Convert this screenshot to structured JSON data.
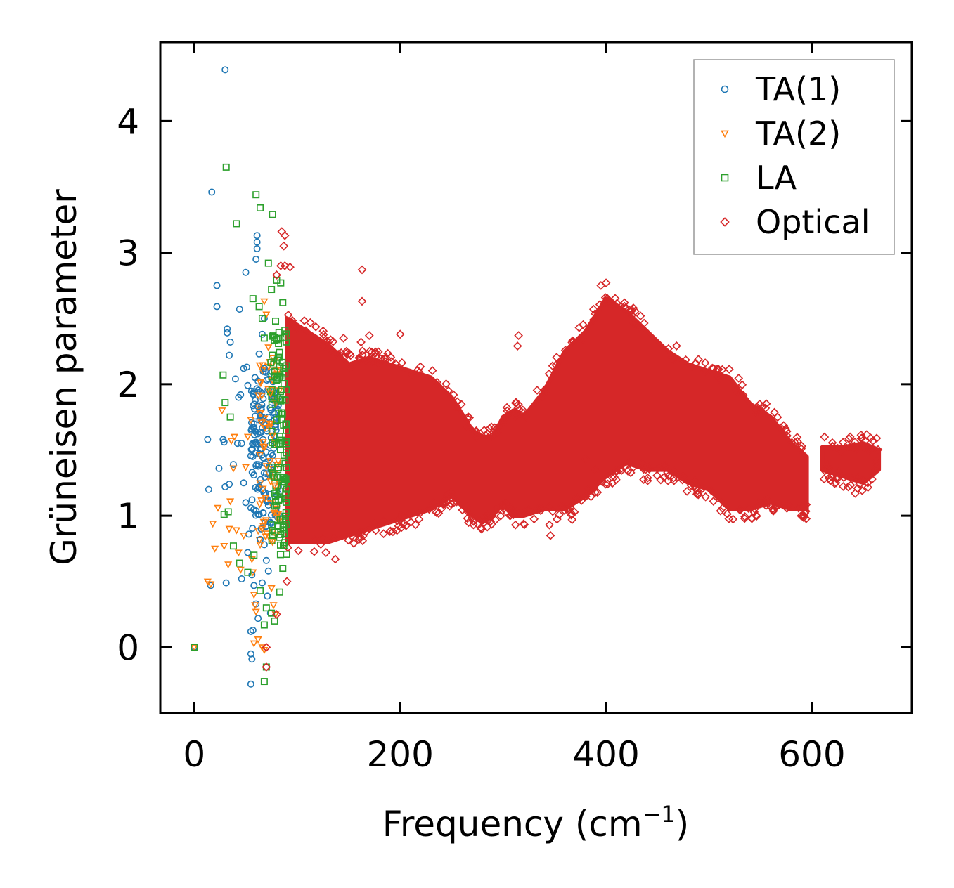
{
  "chart_data": {
    "type": "scatter",
    "title": "",
    "xlabel": "Frequency (cm",
    "xlabel_superscript": "−1",
    "xlabel_close": ")",
    "ylabel": "Grüneisen parameter",
    "xlim": [
      -33,
      697
    ],
    "ylim": [
      -0.5,
      4.6
    ],
    "xticks": [
      0,
      200,
      400,
      600
    ],
    "xtick_labels": [
      "0",
      "200",
      "400",
      "600"
    ],
    "yticks": [
      0,
      1,
      2,
      3,
      4
    ],
    "ytick_labels": [
      "0",
      "1",
      "2",
      "3",
      "4"
    ],
    "grid": false,
    "legend_position": "top-right",
    "series": [
      {
        "name": "TA(1)",
        "marker": "circle",
        "color": "#1f77b4",
        "points": [
          [
            0,
            0
          ],
          [
            30,
            4.39
          ],
          [
            17,
            3.46
          ],
          [
            22,
            2.75
          ],
          [
            22,
            2.59
          ],
          [
            61,
            3.13
          ],
          [
            61,
            3.08
          ],
          [
            61,
            3.03
          ],
          [
            60,
            2.95
          ],
          [
            50,
            2.85
          ],
          [
            44,
            2.57
          ],
          [
            32,
            2.42
          ],
          [
            32,
            2.39
          ],
          [
            35,
            2.32
          ],
          [
            34,
            2.22
          ],
          [
            40,
            2.04
          ],
          [
            48,
            2.12
          ],
          [
            51,
            2.13
          ],
          [
            52,
            1.99
          ],
          [
            43,
            1.9
          ],
          [
            45,
            1.92
          ],
          [
            28,
            1.58
          ],
          [
            13,
            1.58
          ],
          [
            14,
            1.2
          ],
          [
            24,
            1.36
          ],
          [
            29,
            1.56
          ],
          [
            30,
            1.22
          ],
          [
            34,
            1.24
          ],
          [
            38,
            1.39
          ],
          [
            42,
            1.55
          ],
          [
            46,
            1.55
          ],
          [
            48,
            1.25
          ],
          [
            50,
            1.1
          ],
          [
            53,
            0.86
          ],
          [
            56,
            0.55
          ],
          [
            58,
            0.47
          ],
          [
            60,
            0.33
          ],
          [
            62,
            0.22
          ],
          [
            55,
            0.12
          ],
          [
            57,
            0.13
          ],
          [
            55,
            -0.05
          ],
          [
            56,
            -0.09
          ],
          [
            55,
            -0.28
          ],
          [
            16,
            0.47
          ],
          [
            31,
            0.49
          ],
          [
            46,
            0.52
          ],
          [
            52,
            0.72
          ],
          [
            66,
            2.38
          ],
          [
            68,
            2.5
          ],
          [
            63,
            2.23
          ],
          [
            68,
            2.12
          ],
          [
            64,
            1.76
          ],
          [
            67,
            1.44
          ],
          [
            70,
            1.32
          ],
          [
            72,
            1.08
          ],
          [
            74,
            0.95
          ],
          [
            64,
            0.82
          ],
          [
            68,
            0.78
          ],
          [
            70,
            0.66
          ],
          [
            72,
            0.58
          ],
          [
            66,
            0.49
          ],
          [
            71,
            0.39
          ],
          [
            74,
            0.26
          ],
          [
            59,
            2.05
          ],
          [
            62,
            1.83
          ],
          [
            58,
            1.67
          ],
          [
            56,
            1.5
          ],
          [
            60,
            1.38
          ],
          [
            63,
            1.22
          ],
          [
            67,
            1.02
          ],
          [
            65,
            0.9
          ]
        ],
        "band": {
          "x": [
            55,
            82
          ],
          "y": [
            0.9,
            2.1
          ],
          "count": 140
        }
      },
      {
        "name": "TA(2)",
        "marker": "triangle-down",
        "color": "#ff7f0e",
        "points": [
          [
            0,
            0
          ],
          [
            13,
            0.5
          ],
          [
            16,
            0.48
          ],
          [
            20,
            0.75
          ],
          [
            23,
            1.06
          ],
          [
            18,
            0.94
          ],
          [
            27,
            1.8
          ],
          [
            29,
            0.77
          ],
          [
            33,
            0.63
          ],
          [
            34,
            0.9
          ],
          [
            35,
            1.11
          ],
          [
            38,
            1.36
          ],
          [
            39,
            1.6
          ],
          [
            36,
            1.57
          ],
          [
            41,
            0.89
          ],
          [
            43,
            0.72
          ],
          [
            45,
            0.59
          ],
          [
            48,
            0.85
          ],
          [
            50,
            1.37
          ],
          [
            52,
            1.6
          ],
          [
            55,
            1.73
          ],
          [
            56,
            0.67
          ],
          [
            57,
            0.57
          ],
          [
            58,
            0.4
          ],
          [
            59,
            0.32
          ],
          [
            60,
            0.27
          ],
          [
            58,
            0.03
          ],
          [
            62,
            0.06
          ],
          [
            64,
            0.78
          ],
          [
            66,
            0.9
          ],
          [
            68,
            2.63
          ],
          [
            70,
            2.53
          ],
          [
            72,
            2.28
          ],
          [
            74,
            1.93
          ],
          [
            76,
            1.61
          ],
          [
            78,
            1.23
          ],
          [
            76,
            0.8
          ],
          [
            75,
            0.45
          ],
          [
            77,
            0.32
          ],
          [
            79,
            0.25
          ],
          [
            66,
            0.0
          ],
          [
            68,
            -0.02
          ]
        ],
        "band": {
          "x": [
            62,
            84
          ],
          "y": [
            0.8,
            2.2
          ],
          "count": 70
        }
      },
      {
        "name": "LA",
        "marker": "square",
        "color": "#2ca02c",
        "points": [
          [
            0,
            0
          ],
          [
            31,
            3.65
          ],
          [
            60,
            3.44
          ],
          [
            64,
            3.34
          ],
          [
            76,
            3.29
          ],
          [
            41,
            3.22
          ],
          [
            72,
            2.92
          ],
          [
            80,
            2.79
          ],
          [
            84,
            2.77
          ],
          [
            75,
            2.72
          ],
          [
            57,
            2.65
          ],
          [
            63,
            2.59
          ],
          [
            66,
            2.5
          ],
          [
            68,
            2.35
          ],
          [
            28,
            2.07
          ],
          [
            30,
            1.86
          ],
          [
            35,
            1.75
          ],
          [
            29,
            1.01
          ],
          [
            33,
            1.03
          ],
          [
            38,
            0.77
          ],
          [
            44,
            0.64
          ],
          [
            52,
            0.57
          ],
          [
            58,
            0.7
          ],
          [
            64,
            0.43
          ],
          [
            70,
            0.3
          ],
          [
            75,
            0.26
          ],
          [
            78,
            0.2
          ],
          [
            68,
            0.17
          ],
          [
            70,
            -0.15
          ],
          [
            68,
            -0.26
          ],
          [
            78,
            1.17
          ],
          [
            80,
            1.54
          ],
          [
            82,
            1.78
          ],
          [
            85,
            1.96
          ],
          [
            87,
            1.29
          ],
          [
            84,
            0.88
          ],
          [
            86,
            0.6
          ],
          [
            83,
            0.42
          ],
          [
            88,
            2.41
          ],
          [
            86,
            2.62
          ],
          [
            79,
            2.48
          ]
        ],
        "band": {
          "x": [
            74,
            90
          ],
          "y": [
            0.7,
            2.4
          ],
          "count": 120
        }
      },
      {
        "name": "Optical",
        "marker": "diamond",
        "color": "#d62728",
        "points": [
          [
            85,
            3.16
          ],
          [
            88,
            3.13
          ],
          [
            87,
            3.05
          ],
          [
            84,
            2.9
          ],
          [
            88,
            2.9
          ],
          [
            93,
            2.89
          ],
          [
            80,
            2.83
          ],
          [
            70,
            0.0
          ],
          [
            70,
            -0.15
          ],
          [
            80,
            0.25
          ],
          [
            90,
            0.5
          ],
          [
            163,
            2.87
          ],
          [
            163,
            2.63
          ],
          [
            162,
            2.32
          ],
          [
            160,
            2.2
          ],
          [
            170,
            2.37
          ],
          [
            145,
            2.35
          ],
          [
            315,
            2.37
          ],
          [
            314,
            2.29
          ],
          [
            345,
            0.93
          ],
          [
            346,
            0.85
          ],
          [
            367,
            0.97
          ],
          [
            400,
            2.77
          ],
          [
            395,
            2.75
          ],
          [
            428,
            2.46
          ],
          [
            160,
            0.82
          ],
          [
            137,
            0.67
          ],
          [
            128,
            0.72
          ],
          [
            155,
            0.79
          ],
          [
            190,
            0.88
          ],
          [
            175,
            0.95
          ],
          [
            312,
            0.93
          ],
          [
            475,
            1.3
          ],
          [
            450,
            1.36
          ],
          [
            380,
            1.43
          ],
          [
            390,
            1.35
          ],
          [
            530,
            1.05
          ],
          [
            560,
            1.07
          ],
          [
            593,
            1.02
          ],
          [
            662,
            1.41
          ],
          [
            642,
            1.17
          ],
          [
            656,
            1.5
          ],
          [
            615,
            1.39
          ],
          [
            200,
            2.38
          ]
        ],
        "envelope": {
          "x": [
            90,
            110,
            130,
            150,
            170,
            190,
            210,
            230,
            250,
            270,
            280,
            290,
            300,
            310,
            320,
            340,
            360,
            380,
            400,
            420,
            440,
            460,
            480,
            500,
            520,
            540,
            560,
            580,
            595,
            600,
            610,
            630,
            650,
            665
          ],
          "lower": [
            0.8,
            0.8,
            0.8,
            0.85,
            0.9,
            0.95,
            1.0,
            1.05,
            1.15,
            1.0,
            0.95,
            1.0,
            1.1,
            1.0,
            1.0,
            1.05,
            1.05,
            1.15,
            1.3,
            1.4,
            1.35,
            1.35,
            1.25,
            1.2,
            1.05,
            1.05,
            1.1,
            1.05,
            1.05,
            null,
            1.35,
            1.3,
            1.25,
            1.35
          ],
          "upper": [
            2.5,
            2.4,
            2.3,
            2.15,
            2.2,
            2.15,
            2.1,
            2.05,
            1.9,
            1.65,
            1.6,
            1.6,
            1.75,
            1.8,
            1.75,
            1.95,
            2.25,
            2.4,
            2.65,
            2.55,
            2.4,
            2.25,
            2.15,
            2.1,
            2.05,
            1.85,
            1.75,
            1.55,
            1.45,
            null,
            1.52,
            1.52,
            1.55,
            1.5
          ]
        }
      }
    ]
  }
}
